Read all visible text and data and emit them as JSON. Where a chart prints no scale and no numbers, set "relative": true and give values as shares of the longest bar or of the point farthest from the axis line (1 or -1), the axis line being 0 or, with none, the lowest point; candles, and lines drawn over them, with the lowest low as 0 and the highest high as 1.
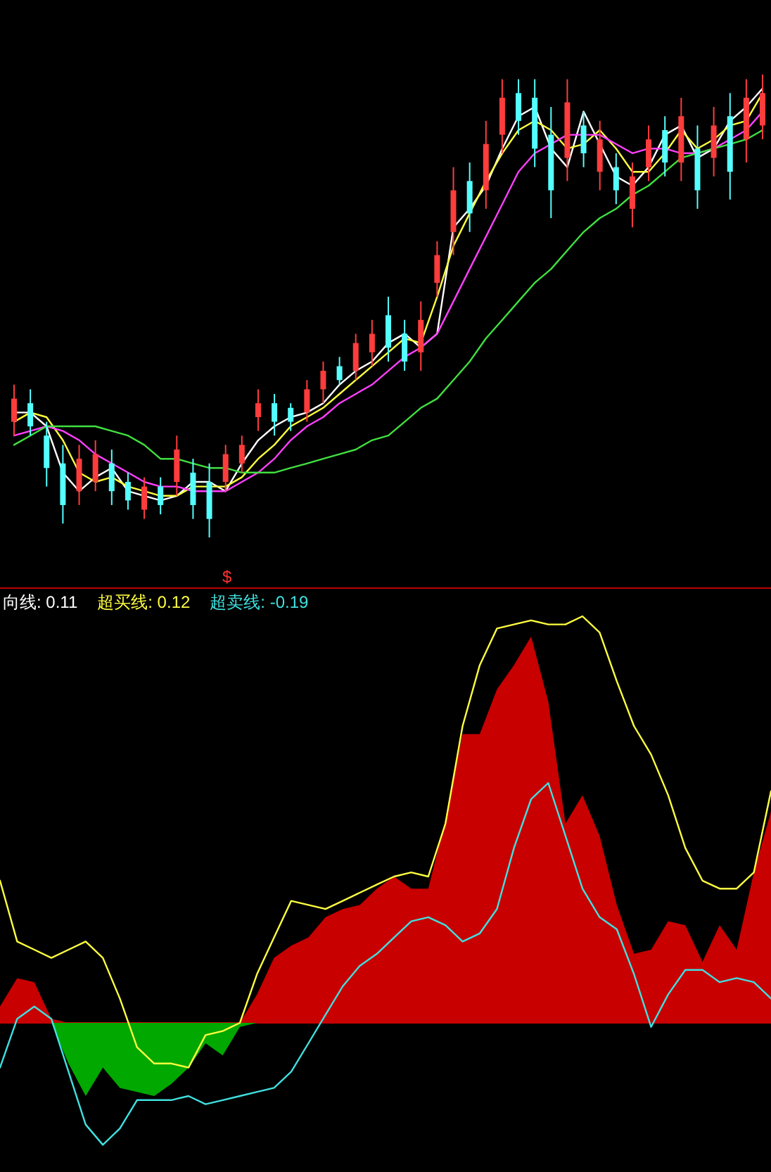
{
  "chart_data": [
    {
      "type": "candlestick",
      "relative": true,
      "annotations": [
        "$"
      ],
      "categories": [
        null,
        null,
        null,
        null,
        null,
        null,
        null,
        null,
        null,
        null,
        null,
        null,
        null,
        null,
        null,
        null,
        null,
        null,
        null,
        null,
        null,
        null,
        null,
        null,
        null,
        null,
        null,
        null,
        null,
        null,
        null,
        null,
        null,
        null,
        null,
        null,
        null,
        null,
        null,
        null,
        null,
        null,
        null,
        null,
        null,
        null,
        null
      ],
      "ohlc": [
        [
          0.25,
          0.33,
          0.22,
          0.3
        ],
        [
          0.29,
          0.32,
          0.22,
          0.24
        ],
        [
          0.22,
          0.25,
          0.11,
          0.15
        ],
        [
          0.16,
          0.2,
          0.03,
          0.07
        ],
        [
          0.1,
          0.2,
          0.07,
          0.17
        ],
        [
          0.12,
          0.21,
          0.1,
          0.18
        ],
        [
          0.16,
          0.19,
          0.07,
          0.1
        ],
        [
          0.12,
          0.14,
          0.06,
          0.08
        ],
        [
          0.06,
          0.13,
          0.04,
          0.11
        ],
        [
          0.11,
          0.13,
          0.05,
          0.07
        ],
        [
          0.12,
          0.22,
          0.09,
          0.19
        ],
        [
          0.14,
          0.17,
          0.04,
          0.07
        ],
        [
          0.12,
          0.16,
          0,
          0.04
        ],
        [
          0.12,
          0.2,
          0.1,
          0.18
        ],
        [
          0.16,
          0.22,
          0.14,
          0.2
        ],
        [
          0.26,
          0.32,
          0.23,
          0.29
        ],
        [
          0.29,
          0.31,
          0.22,
          0.25
        ],
        [
          0.28,
          0.29,
          0.23,
          0.25
        ],
        [
          0.27,
          0.34,
          0.25,
          0.32
        ],
        [
          0.32,
          0.38,
          0.29,
          0.36
        ],
        [
          0.37,
          0.39,
          0.33,
          0.34
        ],
        [
          0.36,
          0.44,
          0.34,
          0.42
        ],
        [
          0.4,
          0.47,
          0.37,
          0.44
        ],
        [
          0.48,
          0.52,
          0.38,
          0.41
        ],
        [
          0.44,
          0.47,
          0.36,
          0.38
        ],
        [
          0.4,
          0.51,
          0.36,
          0.47
        ],
        [
          0.55,
          0.64,
          0.52,
          0.61
        ],
        [
          0.66,
          0.8,
          0.61,
          0.75
        ],
        [
          0.77,
          0.81,
          0.66,
          0.7
        ],
        [
          0.75,
          0.9,
          0.71,
          0.85
        ],
        [
          0.87,
          0.99,
          0.83,
          0.95
        ],
        [
          0.96,
          0.99,
          0.87,
          0.9
        ],
        [
          0.95,
          0.99,
          0.8,
          0.84
        ],
        [
          0.87,
          0.93,
          0.69,
          0.75
        ],
        [
          0.82,
          0.99,
          0.77,
          0.94
        ],
        [
          0.89,
          0.92,
          0.8,
          0.83
        ],
        [
          0.79,
          0.9,
          0.75,
          0.86
        ],
        [
          0.8,
          0.83,
          0.72,
          0.75
        ],
        [
          0.71,
          0.81,
          0.67,
          0.78
        ],
        [
          0.8,
          0.89,
          0.77,
          0.86
        ],
        [
          0.88,
          0.91,
          0.78,
          0.81
        ],
        [
          0.81,
          0.95,
          0.77,
          0.91
        ],
        [
          0.84,
          0.89,
          0.71,
          0.75
        ],
        [
          0.82,
          0.93,
          0.78,
          0.89
        ],
        [
          0.91,
          0.96,
          0.73,
          0.79
        ],
        [
          0.86,
          0.99,
          0.81,
          0.95
        ],
        [
          0.89,
          1,
          0.86,
          0.96
        ]
      ],
      "series": [
        {
          "type": "line",
          "color": "#ffffff",
          "values": [
            0.27,
            0.27,
            0.24,
            0.14,
            0.1,
            0.13,
            0.15,
            0.1,
            0.09,
            0.08,
            0.09,
            0.12,
            0.12,
            0.1,
            0.16,
            0.21,
            0.24,
            0.26,
            0.27,
            0.29,
            0.33,
            0.36,
            0.38,
            0.42,
            0.44,
            0.41,
            0.44,
            0.67,
            0.71,
            0.76,
            0.84,
            0.91,
            0.93,
            0.84,
            0.8,
            0.92,
            0.85,
            0.78,
            0.76,
            0.8,
            0.87,
            0.89,
            0.82,
            0.84,
            0.9,
            0.93,
            0.97
          ]
        },
        {
          "type": "line",
          "color": "#ffff40",
          "values": [
            0.25,
            0.27,
            0.26,
            0.21,
            0.14,
            0.12,
            0.13,
            0.11,
            0.1,
            0.09,
            0.09,
            0.11,
            0.11,
            0.11,
            0.13,
            0.17,
            0.2,
            0.24,
            0.26,
            0.28,
            0.31,
            0.34,
            0.37,
            0.4,
            0.43,
            0.42,
            0.52,
            0.63,
            0.7,
            0.77,
            0.83,
            0.88,
            0.9,
            0.88,
            0.84,
            0.85,
            0.88,
            0.84,
            0.79,
            0.79,
            0.83,
            0.88,
            0.84,
            0.86,
            0.89,
            0.9,
            0.96
          ]
        },
        {
          "type": "line",
          "color": "#ff40ff",
          "values": [
            0.22,
            0.23,
            0.24,
            0.23,
            0.21,
            0.18,
            0.16,
            0.14,
            0.12,
            0.11,
            0.11,
            0.1,
            0.1,
            0.1,
            0.12,
            0.14,
            0.17,
            0.21,
            0.24,
            0.26,
            0.29,
            0.31,
            0.33,
            0.36,
            0.39,
            0.41,
            0.44,
            0.51,
            0.58,
            0.65,
            0.72,
            0.79,
            0.83,
            0.85,
            0.87,
            0.87,
            0.87,
            0.85,
            0.83,
            0.84,
            0.84,
            0.83,
            0.83,
            0.84,
            0.86,
            0.88,
            0.92
          ]
        },
        {
          "type": "line",
          "color": "#40e040",
          "values": [
            0.2,
            0.22,
            0.24,
            0.24,
            0.24,
            0.24,
            0.23,
            0.22,
            0.2,
            0.17,
            0.17,
            0.16,
            0.15,
            0.15,
            0.14,
            0.14,
            0.14,
            0.15,
            0.16,
            0.17,
            0.18,
            0.19,
            0.21,
            0.22,
            0.25,
            0.28,
            0.3,
            0.34,
            0.38,
            0.43,
            0.47,
            0.51,
            0.55,
            0.58,
            0.62,
            0.66,
            0.69,
            0.71,
            0.74,
            0.76,
            0.79,
            0.82,
            0.83,
            0.84,
            0.85,
            0.86,
            0.88
          ]
        }
      ]
    },
    {
      "type": "line",
      "relative": true,
      "annotations": [
        "向线: 0.11"
      ],
      "ref_lines": [
        {
          "axis": "y",
          "value": 0,
          "color": "#c80000",
          "line_style": "solid"
        }
      ],
      "categories": [
        null,
        null,
        null,
        null,
        null,
        null,
        null,
        null,
        null,
        null,
        null,
        null,
        null,
        null,
        null,
        null,
        null,
        null,
        null,
        null,
        null,
        null,
        null,
        null,
        null,
        null,
        null,
        null,
        null,
        null,
        null,
        null,
        null,
        null,
        null,
        null,
        null,
        null,
        null,
        null,
        null,
        null,
        null,
        null,
        null,
        null
      ],
      "series": [
        {
          "type": "area",
          "color": "#c80000",
          "values": [
            0.04,
            0.11,
            0.1,
            0.01,
            0,
            0,
            0,
            0,
            0,
            0,
            0,
            0,
            0,
            0,
            0,
            0.07,
            0.16,
            0.19,
            0.21,
            0.26,
            0.28,
            0.29,
            0.33,
            0.36,
            0.33,
            0.33,
            0.5,
            0.71,
            0.71,
            0.82,
            0.88,
            0.95,
            0.79,
            0.49,
            0.56,
            0.46,
            0.29,
            0.17,
            0.18,
            0.25,
            0.24,
            0.15,
            0.24,
            0.18,
            0.37,
            0.52
          ]
        },
        {
          "type": "area",
          "color": "#00a800",
          "values": [
            0,
            0,
            0,
            0,
            -0.1,
            -0.18,
            -0.11,
            -0.16,
            -0.17,
            -0.18,
            -0.15,
            -0.11,
            -0.05,
            -0.08,
            -0.01,
            0,
            0,
            0,
            0,
            0,
            0,
            0,
            0,
            0,
            0,
            0,
            0,
            0,
            0,
            0,
            0,
            0,
            0,
            0,
            0,
            0,
            0,
            0,
            0,
            0,
            0,
            0,
            0,
            0,
            0,
            0
          ]
        },
        {
          "name": "超买线: 0.12",
          "color": "#ffff40",
          "values": [
            0.35,
            0.2,
            0.18,
            0.16,
            0.18,
            0.2,
            0.16,
            0.06,
            -0.06,
            -0.1,
            -0.1,
            -0.11,
            -0.03,
            -0.02,
            0,
            0.12,
            0.21,
            0.3,
            0.29,
            0.28,
            0.3,
            0.32,
            0.34,
            0.36,
            0.37,
            0.36,
            0.49,
            0.73,
            0.88,
            0.97,
            0.98,
            0.99,
            0.98,
            0.98,
            1,
            0.96,
            0.84,
            0.73,
            0.66,
            0.56,
            0.43,
            0.35,
            0.33,
            0.33,
            0.37,
            0.57
          ]
        },
        {
          "name": "超卖线: -0.19",
          "color": "#40e0e0",
          "values": [
            -0.11,
            0.01,
            0.04,
            0.01,
            -0.12,
            -0.25,
            -0.3,
            -0.26,
            -0.19,
            -0.19,
            -0.19,
            -0.18,
            -0.2,
            -0.19,
            -0.18,
            -0.17,
            -0.16,
            -0.12,
            -0.05,
            0.02,
            0.09,
            0.14,
            0.17,
            0.21,
            0.25,
            0.26,
            0.24,
            0.2,
            0.22,
            0.28,
            0.43,
            0.55,
            0.59,
            0.46,
            0.33,
            0.26,
            0.23,
            0.12,
            -0.01,
            0.07,
            0.13,
            0.13,
            0.1,
            0.11,
            0.1,
            0.06
          ]
        }
      ]
    }
  ]
}
